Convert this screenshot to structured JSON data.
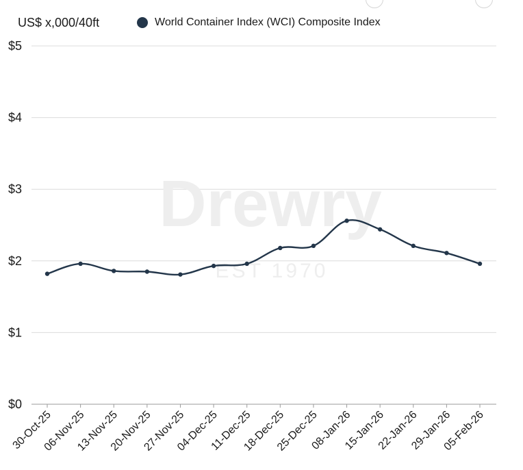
{
  "chart_data": {
    "type": "line",
    "unit_label": "US$ x,000/40ft",
    "legend": "World Container Index (WCI) Composite Index",
    "watermark": {
      "brand": "Drewry",
      "tagline": "EST 1970"
    },
    "categories": [
      "30-Oct-25",
      "06-Nov-25",
      "13-Nov-25",
      "20-Nov-25",
      "27-Nov-25",
      "04-Dec-25",
      "11-Dec-25",
      "18-Dec-25",
      "25-Dec-25",
      "08-Jan-26",
      "15-Jan-26",
      "22-Jan-26",
      "29-Jan-26",
      "05-Feb-26"
    ],
    "series": [
      {
        "name": "World Container Index (WCI) Composite Index",
        "values": [
          1.82,
          1.96,
          1.86,
          1.85,
          1.81,
          1.93,
          1.96,
          2.18,
          2.21,
          2.56,
          2.44,
          2.21,
          2.11,
          1.96
        ]
      }
    ],
    "ylim": [
      0,
      5
    ],
    "yticks": [
      0,
      1,
      2,
      3,
      4,
      5
    ],
    "ytick_labels": [
      "$0",
      "$1",
      "$2",
      "$3",
      "$4",
      "$5"
    ],
    "grid": true,
    "legend_position": "top",
    "colors": {
      "line": "#23364a",
      "grid": "#dcdcdc",
      "watermark": "#eeeeee"
    }
  }
}
